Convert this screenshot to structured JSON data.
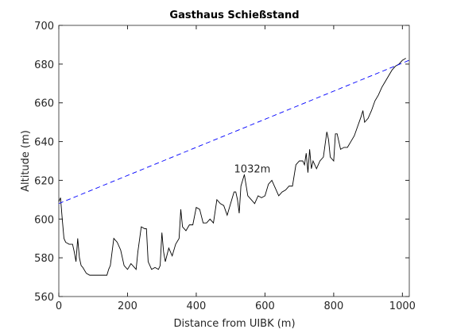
{
  "chart_data": {
    "type": "line",
    "title": "Gasthaus Schießstand",
    "xlabel": "Distance from UIBK (m)",
    "ylabel": "Altitude (m)",
    "xlim": [
      0,
      1020
    ],
    "ylim": [
      560,
      700
    ],
    "xticks": [
      0,
      200,
      400,
      600,
      800,
      1000
    ],
    "yticks": [
      560,
      580,
      600,
      620,
      640,
      660,
      680,
      700
    ],
    "box": true,
    "annotations": [
      {
        "text": "1032m",
        "x": 563,
        "y": 624
      }
    ],
    "series": [
      {
        "color": "#000000",
        "dash": false,
        "x": [
          0,
          5,
          10,
          15,
          20,
          30,
          40,
          45,
          50,
          55,
          60,
          65,
          70,
          80,
          90,
          100,
          120,
          140,
          145,
          150,
          160,
          170,
          180,
          190,
          200,
          210,
          220,
          225,
          230,
          240,
          250,
          255,
          260,
          270,
          280,
          290,
          295,
          300,
          305,
          310,
          320,
          330,
          340,
          350,
          355,
          360,
          370,
          380,
          390,
          400,
          410,
          420,
          430,
          440,
          450,
          460,
          470,
          480,
          490,
          500,
          510,
          515,
          520,
          525,
          530,
          540,
          550,
          560,
          570,
          580,
          590,
          600,
          610,
          620,
          630,
          640,
          650,
          660,
          670,
          680,
          690,
          700,
          710,
          715,
          720,
          725,
          730,
          735,
          740,
          750,
          760,
          770,
          780,
          785,
          790,
          800,
          805,
          810,
          820,
          830,
          840,
          850,
          860,
          870,
          880,
          885,
          890,
          900,
          910,
          920,
          930,
          940,
          950,
          960,
          970,
          980,
          990,
          1000,
          1010
        ],
        "values": [
          609,
          611,
          600,
          590,
          588,
          587,
          587,
          583,
          578,
          590,
          580,
          576,
          575,
          572,
          571,
          571,
          571,
          571,
          574,
          576,
          590,
          588,
          584,
          576,
          574,
          577,
          575,
          574,
          583,
          596,
          595,
          595,
          578,
          574,
          575,
          574,
          576,
          593,
          583,
          578,
          585,
          581,
          587,
          590,
          605,
          596,
          594,
          597,
          597,
          606,
          605,
          598,
          598,
          600,
          598,
          610,
          608,
          607,
          602,
          608,
          614,
          614,
          610,
          603,
          617,
          623,
          612,
          610,
          608,
          612,
          611,
          612,
          618,
          620,
          616,
          612,
          614,
          615,
          617,
          617,
          628,
          630,
          630,
          628,
          634,
          624,
          636,
          626,
          630,
          626,
          630,
          632,
          645,
          641,
          632,
          630,
          644,
          644,
          636,
          637,
          637,
          640,
          643,
          648,
          653,
          656,
          650,
          652,
          656,
          661,
          664,
          668,
          671,
          674,
          677,
          679,
          680,
          682,
          683
        ]
      },
      {
        "color": "#0000ff",
        "dash": true,
        "x": [
          0,
          1020
        ],
        "values": [
          608,
          682
        ]
      }
    ]
  }
}
